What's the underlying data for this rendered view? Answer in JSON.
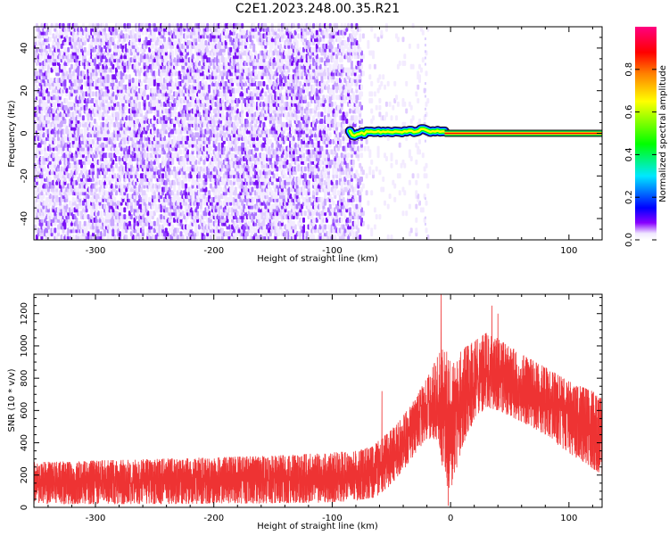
{
  "title": "C2E1.2023.248.00.35.R21",
  "chart_data": [
    {
      "type": "heatmap",
      "xlabel": "Height of straight line (km)",
      "ylabel": "Frequency (Hz)",
      "xlim": [
        -352,
        128
      ],
      "ylim": [
        -50,
        50
      ],
      "xticks": [
        -300,
        -200,
        -100,
        0,
        100
      ],
      "yticks": [
        -40,
        -20,
        0,
        20,
        40
      ],
      "colorbar": {
        "label": "Normalized spectral amplitude",
        "range": [
          0,
          1
        ],
        "ticks": [
          0.0,
          0.2,
          0.4,
          0.6,
          0.8
        ],
        "colormap": [
          "#f0e8ff",
          "#8800ff",
          "#0000ff",
          "#00e8ff",
          "#00ff00",
          "#ffff00",
          "#ff8000",
          "#ff0000",
          "#ff0080"
        ]
      },
      "noise_region": {
        "x_range": [
          -352,
          -75
        ],
        "amplitude_range": [
          0.0,
          0.1
        ]
      },
      "transition_region": {
        "x_range": [
          -75,
          -20
        ],
        "amplitude_range": [
          0.0,
          0.05
        ]
      },
      "signal_line": {
        "frequency": 0,
        "x_range": [
          -85,
          128
        ],
        "peak_amplitude": 0.9
      }
    },
    {
      "type": "line",
      "xlabel": "Height of straight line (km)",
      "ylabel": "SNR (10 * v/v)",
      "xlim": [
        -352,
        128
      ],
      "ylim": [
        0,
        1320
      ],
      "xticks": [
        -300,
        -200,
        -100,
        0,
        100
      ],
      "yticks": [
        0,
        200,
        400,
        600,
        800,
        1000,
        1200
      ],
      "color": "#ee3333",
      "envelope": {
        "x": [
          -352,
          -250,
          -150,
          -100,
          -80,
          -65,
          -60,
          -50,
          -40,
          -30,
          -20,
          -10,
          -5,
          0,
          10,
          20,
          30,
          40,
          60,
          80,
          100,
          120,
          128
        ],
        "lower": [
          20,
          20,
          25,
          30,
          40,
          60,
          80,
          140,
          230,
          330,
          420,
          420,
          150,
          100,
          380,
          540,
          620,
          600,
          530,
          450,
          330,
          240,
          200
        ],
        "upper": [
          280,
          300,
          320,
          340,
          350,
          380,
          420,
          480,
          570,
          680,
          800,
          950,
          1000,
          900,
          980,
          1030,
          1080,
          1050,
          950,
          870,
          780,
          720,
          680
        ]
      },
      "spikes": [
        {
          "x": -58,
          "y": 720
        },
        {
          "x": -8,
          "y": 1320
        },
        {
          "x": -2,
          "y": 10
        },
        {
          "x": 35,
          "y": 1250
        },
        {
          "x": 40,
          "y": 1200
        },
        {
          "x": 125,
          "y": 220
        }
      ]
    }
  ]
}
